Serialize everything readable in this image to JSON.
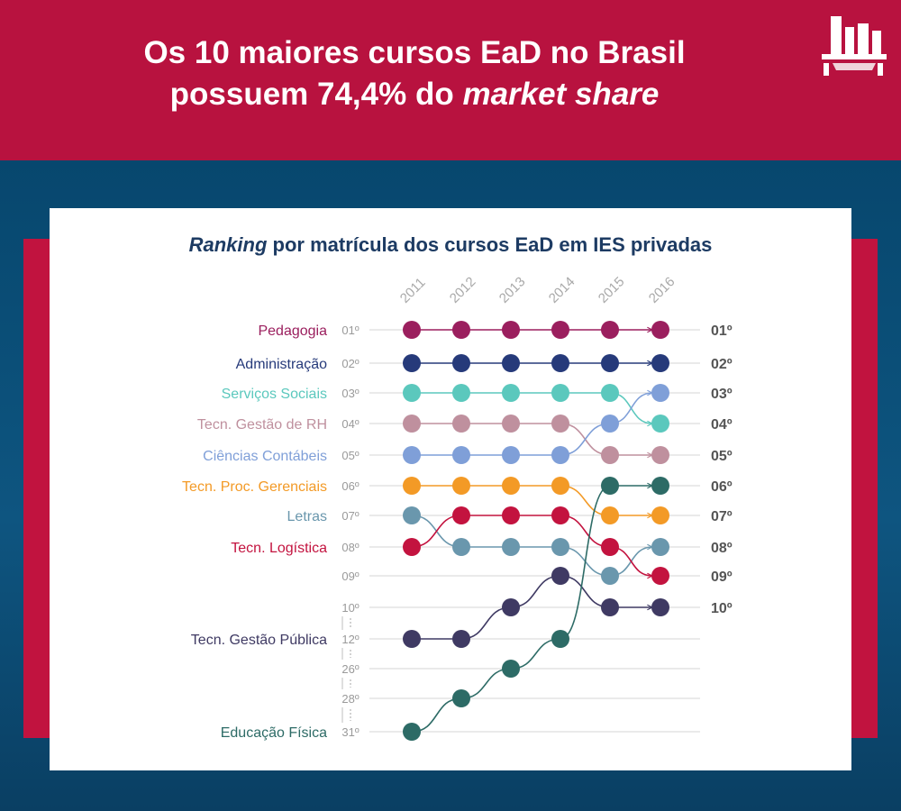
{
  "header": {
    "title_line1": "Os 10 maiores cursos EaD no Brasil",
    "title_line2_plain": "possuem 74,4% do ",
    "title_line2_emph": "market share",
    "logo_icon": "bar-chart-building-icon",
    "background_color": "#b8123f"
  },
  "chart_data": {
    "type": "line",
    "title_emph": "Ranking",
    "title_rest": " por matrícula dos cursos EaD em IES privadas",
    "x": [
      "2011",
      "2012",
      "2013",
      "2014",
      "2015",
      "2016"
    ],
    "y_scale": "ordinal rank (broken axis: 10–12, 12–26, 26–28, 28–31)",
    "rank_labels_left": [
      "01º",
      "02º",
      "03º",
      "04º",
      "05º",
      "06º",
      "07º",
      "08º",
      "09º",
      "10º",
      "12º",
      "26º",
      "28º",
      "31º"
    ],
    "rank_labels_right": [
      "01º",
      "02º",
      "03º",
      "04º",
      "05º",
      "06º",
      "07º",
      "08º",
      "09º",
      "10º"
    ],
    "grid": true,
    "series": [
      {
        "name": "Pedagogia",
        "values": [
          1,
          1,
          1,
          1,
          1,
          1
        ],
        "color": "#9b1f5e"
      },
      {
        "name": "Administração",
        "values": [
          2,
          2,
          2,
          2,
          2,
          2
        ],
        "color": "#263a7a"
      },
      {
        "name": "Serviços Sociais",
        "values": [
          3,
          3,
          3,
          3,
          3,
          4
        ],
        "color": "#5bc8bd"
      },
      {
        "name": "Tecn. Gestão de RH",
        "values": [
          4,
          4,
          4,
          4,
          5,
          5
        ],
        "color": "#bf909e"
      },
      {
        "name": "Ciências Contábeis",
        "values": [
          5,
          5,
          5,
          5,
          4,
          3
        ],
        "color": "#7f9fd8"
      },
      {
        "name": "Tecn. Proc. Gerenciais",
        "values": [
          6,
          6,
          6,
          6,
          7,
          7
        ],
        "color": "#f39a26"
      },
      {
        "name": "Letras",
        "values": [
          7,
          8,
          8,
          8,
          9,
          8
        ],
        "color": "#6a97ad"
      },
      {
        "name": "Tecn. Logística",
        "values": [
          8,
          7,
          7,
          7,
          8,
          9
        ],
        "color": "#c3133f"
      },
      {
        "name": "Tecn. Gestão Pública",
        "values": [
          12,
          12,
          10,
          9,
          10,
          10
        ],
        "color": "#3f3a63"
      },
      {
        "name": "Educação Física",
        "values": [
          31,
          28,
          26,
          12,
          6,
          6
        ],
        "color": "#2d6b66"
      }
    ]
  }
}
